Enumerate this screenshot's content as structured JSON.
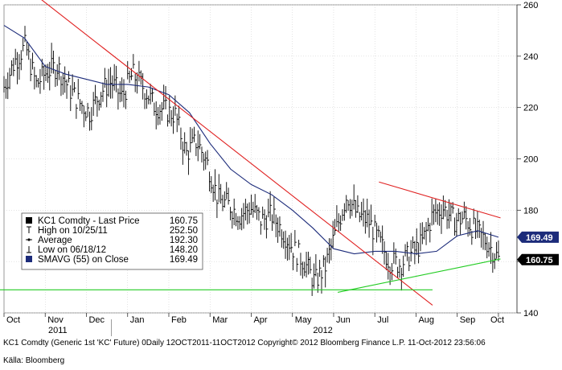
{
  "chart_data": {
    "type": "line",
    "ylim": [
      140,
      260
    ],
    "y_ticks": [
      140,
      160,
      180,
      200,
      220,
      240,
      260
    ],
    "x_month_labels": [
      "Oct",
      "Nov",
      "Dec",
      "Jan",
      "Feb",
      "Mar",
      "Apr",
      "May",
      "Jun",
      "Jul",
      "Aug",
      "Sep",
      "Oct"
    ],
    "x_year_labels": [
      "2011",
      "2012"
    ],
    "grid": true,
    "legend": {
      "placement": "bottom-left",
      "entries": [
        {
          "label": "KC1 Comdty - Last Price",
          "value": "160.75",
          "marker": "square",
          "color": "#000000"
        },
        {
          "label": "High on 10/25/11",
          "value": "252.50",
          "marker": "high",
          "color": "#000000"
        },
        {
          "label": "Average",
          "value": "192.30",
          "marker": "average",
          "color": "#000000"
        },
        {
          "label": "Low on 06/18/12",
          "value": "148.20",
          "marker": "low",
          "color": "#000000"
        },
        {
          "label": "SMAVG (55) on Close",
          "value": "169.49",
          "marker": "square",
          "color": "#1c2b7a"
        }
      ]
    },
    "price_labels": [
      {
        "value": 169.49,
        "text": "169.49"
      },
      {
        "value": 160.75,
        "text": "160.75"
      }
    ],
    "series": [
      {
        "name": "KC1 Comdty - Last Price",
        "color": "#000000",
        "kind": "hlc-bars",
        "x": [
          0,
          0.26,
          0.52,
          0.78,
          1.04,
          1.3,
          1.56,
          1.82,
          2.08,
          2.34,
          2.6,
          2.86,
          3.12,
          3.38,
          3.64,
          3.9,
          4.16,
          4.42,
          4.68,
          4.94,
          5.2,
          5.46,
          5.72,
          5.98,
          6.24,
          6.5,
          6.76,
          7.02,
          7.28,
          7.54,
          7.8,
          8.06,
          8.32,
          8.58,
          8.84,
          9.1,
          9.36,
          9.62,
          9.88,
          10.14,
          10.4,
          10.66,
          10.92,
          11.18,
          11.44,
          11.7,
          11.96,
          12.0
        ],
        "close": [
          228,
          238,
          244,
          229,
          234,
          236,
          228,
          222,
          218,
          226,
          230,
          224,
          233,
          228,
          221,
          219,
          217,
          202,
          207,
          198,
          184,
          182,
          178,
          181,
          176,
          178,
          172,
          165,
          160,
          152,
          158,
          172,
          186,
          178,
          176,
          168,
          160,
          159,
          163,
          167,
          178,
          181,
          176,
          177,
          172,
          168,
          162,
          160.75
        ]
      },
      {
        "name": "SMAVG (55) on Close",
        "color": "#1c2b7a",
        "kind": "line",
        "x": [
          0,
          0.5,
          1,
          1.5,
          2,
          2.5,
          3,
          3.5,
          4,
          4.5,
          5,
          5.5,
          6,
          6.5,
          7,
          7.5,
          8,
          8.5,
          9,
          9.5,
          10,
          10.5,
          11,
          11.5,
          12
        ],
        "values": [
          252,
          247,
          236,
          233,
          231,
          229,
          229,
          228,
          225,
          218,
          206,
          196,
          190,
          186,
          180,
          173,
          165,
          163,
          164,
          164,
          163,
          164,
          170,
          172,
          169.49
        ]
      }
    ],
    "trendlines": [
      {
        "name": "downtrend",
        "color": "#e02020",
        "from": [
          0.75,
          264
        ],
        "to": [
          10.4,
          143
        ]
      },
      {
        "name": "short-downtrend",
        "color": "#e02020",
        "from": [
          9.1,
          191
        ],
        "to": [
          12.05,
          177
        ]
      },
      {
        "name": "uptrend",
        "color": "#22cc22",
        "from": [
          8.1,
          148
        ],
        "to": [
          12.05,
          161
        ]
      },
      {
        "name": "support",
        "color": "#22cc22",
        "from": [
          -0.1,
          149
        ],
        "to": [
          10.4,
          149
        ]
      }
    ]
  },
  "footer": {
    "description": "KC1 Comdty (Generic 1st 'KC' Future) 0Daily 12OCT2011-11OCT2012 Copyright© 2012 Bloomberg Finance L.P.  11-Oct-2012 23:56:06",
    "source": "Källa: Bloomberg"
  }
}
